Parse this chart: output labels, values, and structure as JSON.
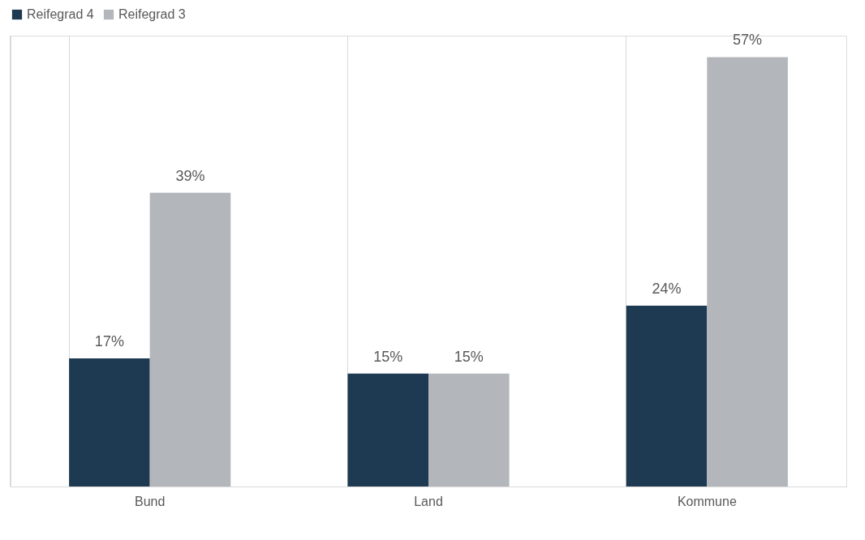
{
  "chart_data": {
    "type": "bar",
    "categories": [
      "Bund",
      "Land",
      "Kommune"
    ],
    "series": [
      {
        "name": "Reifegrad 4",
        "color": "#1e3a52",
        "values": [
          17,
          15,
          24
        ],
        "value_labels": [
          "17%",
          "15%",
          "24%"
        ]
      },
      {
        "name": "Reifegrad 3",
        "color": "#b3b6ba",
        "values": [
          39,
          15,
          57
        ],
        "value_labels": [
          "39%",
          "15%",
          "57%"
        ]
      }
    ],
    "legend": "top",
    "grid": "x"
  }
}
